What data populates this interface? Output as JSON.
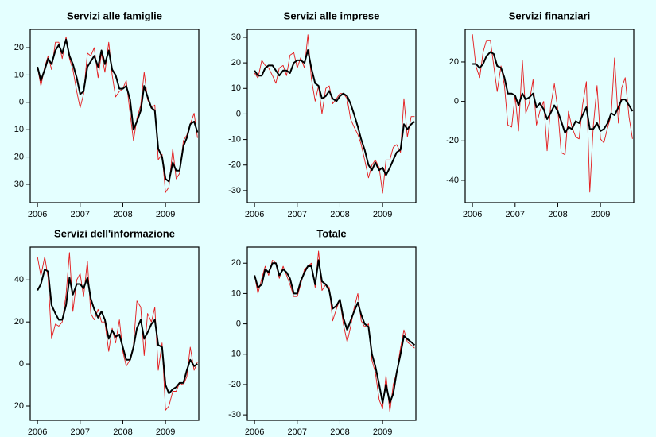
{
  "chart_data": [
    {
      "type": "line",
      "title": "Servizi alle famiglie",
      "x": [
        2006,
        2006.08,
        2006.17,
        2006.25,
        2006.33,
        2006.42,
        2006.5,
        2006.58,
        2006.67,
        2006.75,
        2006.83,
        2006.92,
        2007,
        2007.08,
        2007.17,
        2007.25,
        2007.33,
        2007.42,
        2007.5,
        2007.58,
        2007.67,
        2007.75,
        2007.83,
        2007.92,
        2008,
        2008.08,
        2008.17,
        2008.25,
        2008.33,
        2008.42,
        2008.5,
        2008.58,
        2008.67,
        2008.75,
        2008.83,
        2008.92,
        2009,
        2009.08,
        2009.17,
        2009.25,
        2009.33,
        2009.42,
        2009.5,
        2009.58,
        2009.67,
        2009.75
      ],
      "series": [
        {
          "color": "#e41a1c",
          "values": [
            13,
            6,
            13,
            17,
            12,
            22,
            22,
            16,
            24,
            16,
            12,
            4,
            -2,
            3,
            18,
            17,
            20,
            9,
            18,
            11,
            22,
            10,
            2,
            4,
            5,
            8,
            -4,
            -14,
            -6,
            -1,
            11,
            1,
            -2,
            -1,
            -21,
            -19,
            -33,
            -31,
            -17,
            -28,
            -26,
            -14,
            -12,
            -8,
            -4,
            -13
          ]
        },
        {
          "color": "#000000",
          "values": [
            13,
            8,
            12,
            16,
            14,
            19,
            21,
            18,
            23,
            17,
            14,
            9,
            3,
            4,
            13,
            15,
            17,
            13,
            19,
            14,
            19,
            12,
            10,
            5,
            5,
            6,
            1,
            -10,
            -7,
            -3,
            6,
            2,
            -2,
            -3,
            -17,
            -20,
            -28,
            -29,
            -22,
            -25,
            -25,
            -16,
            -13,
            -8,
            -7,
            -11
          ]
        }
      ],
      "xlim": [
        2005.83,
        2009.78
      ],
      "xticks": [
        2006,
        2007,
        2008,
        2009
      ],
      "ylim": [
        -36.7,
        26.7
      ],
      "yticks": [
        20,
        10,
        0,
        {
          "value": -10,
          "label": "10"
        },
        {
          "value": -20,
          "label": "20"
        },
        {
          "value": -30,
          "label": "30"
        }
      ]
    },
    {
      "type": "line",
      "title": "Servizi alle imprese",
      "x": [
        2006,
        2006.08,
        2006.17,
        2006.25,
        2006.33,
        2006.42,
        2006.5,
        2006.58,
        2006.67,
        2006.75,
        2006.83,
        2006.92,
        2007,
        2007.08,
        2007.17,
        2007.25,
        2007.33,
        2007.42,
        2007.5,
        2007.58,
        2007.67,
        2007.75,
        2007.83,
        2007.92,
        2008,
        2008.08,
        2008.17,
        2008.25,
        2008.33,
        2008.42,
        2008.5,
        2008.58,
        2008.67,
        2008.75,
        2008.83,
        2008.92,
        2009,
        2009.08,
        2009.17,
        2009.25,
        2009.33,
        2009.42,
        2009.5,
        2009.58,
        2009.67,
        2009.75
      ],
      "series": [
        {
          "color": "#e41a1c",
          "values": [
            16,
            14,
            21,
            19,
            18,
            15,
            12,
            18,
            19,
            15,
            23,
            24,
            18,
            22,
            18,
            31,
            14,
            5,
            11,
            0,
            10,
            11,
            4,
            6,
            8,
            8,
            6,
            -2,
            -5,
            -8,
            -12,
            -18,
            -25,
            -20,
            -18,
            -21,
            -31,
            -18,
            -18,
            -13,
            -12,
            -15,
            6,
            -9,
            -1,
            -1
          ]
        },
        {
          "color": "#000000",
          "values": [
            17,
            15,
            15,
            18,
            19,
            19,
            17,
            15,
            17,
            17,
            16,
            20,
            21,
            21,
            20,
            25,
            18,
            12,
            11,
            6,
            7,
            9,
            6,
            5,
            7,
            8,
            7,
            4,
            0,
            -5,
            -10,
            -14,
            -20,
            -22,
            -19,
            -22,
            -21,
            -24,
            -21,
            -18,
            -15,
            -14,
            -4,
            -6,
            -4,
            -3
          ]
        }
      ],
      "xlim": [
        2005.83,
        2009.78
      ],
      "xticks": [
        2006,
        2007,
        2008,
        2009
      ],
      "ylim": [
        -34.7,
        33.1
      ],
      "yticks": [
        30,
        20,
        10,
        0,
        -10,
        -20,
        -30
      ]
    },
    {
      "type": "line",
      "title": "Servizi finanziari",
      "x": [
        2006,
        2006.08,
        2006.17,
        2006.25,
        2006.33,
        2006.42,
        2006.5,
        2006.58,
        2006.67,
        2006.75,
        2006.83,
        2006.92,
        2007,
        2007.08,
        2007.17,
        2007.25,
        2007.33,
        2007.42,
        2007.5,
        2007.58,
        2007.67,
        2007.75,
        2007.83,
        2007.92,
        2008,
        2008.08,
        2008.17,
        2008.25,
        2008.33,
        2008.42,
        2008.5,
        2008.58,
        2008.67,
        2008.75,
        2008.83,
        2008.92,
        2009,
        2009.08,
        2009.17,
        2009.25,
        2009.33,
        2009.42,
        2009.5,
        2009.58,
        2009.67,
        2009.75
      ],
      "series": [
        {
          "color": "#e41a1c",
          "values": [
            34,
            18,
            12,
            25,
            31,
            31,
            18,
            5,
            18,
            8,
            -12,
            -13,
            3,
            -15,
            21,
            -6,
            -1,
            11,
            -12,
            -5,
            0,
            -25,
            -3,
            9,
            -4,
            -26,
            -27,
            -5,
            -13,
            -18,
            -19,
            -2,
            10,
            -46,
            -13,
            8,
            -19,
            -21,
            -13,
            -7,
            22,
            -11,
            7,
            12,
            -8,
            -19
          ]
        },
        {
          "color": "#000000",
          "values": [
            19,
            19,
            17,
            19,
            23,
            25,
            24,
            18,
            17,
            12,
            4,
            4,
            3,
            -2,
            4,
            1,
            2,
            4,
            -3,
            -1,
            -4,
            -9,
            -6,
            -2,
            -5,
            -10,
            -16,
            -13,
            -14,
            -10,
            -11,
            -7,
            -3,
            -14,
            -14,
            -11,
            -15,
            -14,
            -11,
            -6,
            -7,
            -3,
            1,
            1,
            -2,
            -5
          ]
        }
      ],
      "xlim": [
        2005.83,
        2009.78
      ],
      "xticks": [
        2006,
        2007,
        2008,
        2009
      ],
      "ylim": [
        -51.3,
        36.5
      ],
      "yticks": [
        20,
        0,
        -20,
        -40
      ]
    },
    {
      "type": "line",
      "title": "Servizi dell'informazione",
      "x": [
        2006,
        2006.08,
        2006.17,
        2006.25,
        2006.33,
        2006.42,
        2006.5,
        2006.58,
        2006.67,
        2006.75,
        2006.83,
        2006.92,
        2007,
        2007.08,
        2007.17,
        2007.25,
        2007.33,
        2007.42,
        2007.5,
        2007.58,
        2007.67,
        2007.75,
        2007.83,
        2007.92,
        2008,
        2008.08,
        2008.17,
        2008.25,
        2008.33,
        2008.42,
        2008.5,
        2008.58,
        2008.67,
        2008.75,
        2008.83,
        2008.92,
        2009,
        2009.08,
        2009.17,
        2009.25,
        2009.33,
        2009.42,
        2009.5,
        2009.58,
        2009.67,
        2009.75
      ],
      "series": [
        {
          "color": "#e41a1c",
          "values": [
            51,
            42,
            51,
            41,
            12,
            19,
            18,
            20,
            33,
            53,
            25,
            40,
            43,
            32,
            49,
            24,
            21,
            26,
            20,
            20,
            6,
            17,
            10,
            21,
            6,
            -1,
            2,
            9,
            30,
            27,
            4,
            24,
            20,
            27,
            -3,
            10,
            -22,
            -20,
            -13,
            -13,
            -9,
            -10,
            -6,
            8,
            -3,
            1
          ]
        },
        {
          "color": "#000000",
          "values": [
            35,
            38,
            45,
            44,
            28,
            24,
            21,
            21,
            28,
            41,
            33,
            38,
            38,
            36,
            41,
            31,
            26,
            22,
            25,
            21,
            12,
            16,
            13,
            14,
            8,
            2,
            2,
            8,
            17,
            21,
            12,
            15,
            19,
            21,
            9,
            8,
            -10,
            -14,
            -12,
            -11,
            -9,
            -9,
            -3,
            2,
            -1,
            0
          ]
        }
      ],
      "xlim": [
        2005.83,
        2009.78
      ],
      "xticks": [
        2006,
        2007,
        2008,
        2009
      ],
      "ylim": [
        -26.8,
        55.6
      ],
      "yticks": [
        40,
        20,
        0,
        {
          "value": -20,
          "label": "20"
        }
      ]
    },
    {
      "type": "line",
      "title": "Totale",
      "x": [
        2006,
        2006.08,
        2006.17,
        2006.25,
        2006.33,
        2006.42,
        2006.5,
        2006.58,
        2006.67,
        2006.75,
        2006.83,
        2006.92,
        2007,
        2007.08,
        2007.17,
        2007.25,
        2007.33,
        2007.42,
        2007.5,
        2007.58,
        2007.67,
        2007.75,
        2007.83,
        2007.92,
        2008,
        2008.08,
        2008.17,
        2008.25,
        2008.33,
        2008.42,
        2008.5,
        2008.58,
        2008.67,
        2008.75,
        2008.83,
        2008.92,
        2009,
        2009.08,
        2009.17,
        2009.25,
        2009.33,
        2009.42,
        2009.5,
        2009.58,
        2009.67,
        2009.75
      ],
      "series": [
        {
          "color": "#e41a1c",
          "values": [
            16,
            10,
            15,
            19,
            16,
            21,
            20,
            15,
            19,
            16,
            13,
            9,
            9,
            13,
            18,
            19,
            20,
            12,
            24,
            11,
            13,
            12,
            1,
            5,
            8,
            0,
            -6,
            -1,
            5,
            10,
            1,
            -1,
            0,
            -12,
            -16,
            -25,
            -28,
            -17,
            -29,
            -20,
            -16,
            -8,
            -2,
            -6,
            -7,
            -8
          ]
        },
        {
          "color": "#000000",
          "values": [
            16,
            12,
            13,
            18,
            17,
            20,
            20,
            16,
            18,
            17,
            15,
            10,
            10,
            14,
            17,
            19,
            19,
            13,
            21,
            14,
            13,
            11,
            5,
            6,
            8,
            2,
            -2,
            1,
            4,
            7,
            3,
            0,
            -1,
            -10,
            -14,
            -20,
            -26,
            -20,
            -26,
            -23,
            -16,
            -10,
            -4,
            -5,
            -6,
            -7
          ]
        }
      ],
      "xlim": [
        2005.83,
        2009.78
      ],
      "xticks": [
        2006,
        2007,
        2008,
        2009
      ],
      "ylim": [
        -31.8,
        25.3
      ],
      "yticks": [
        20,
        10,
        0,
        -10,
        -20,
        -30
      ]
    }
  ]
}
